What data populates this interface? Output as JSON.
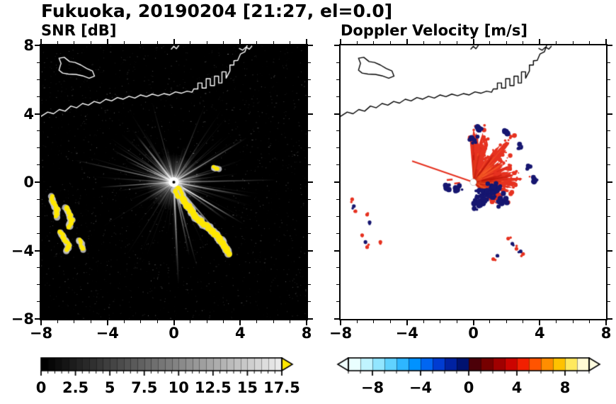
{
  "title": "Fukuoka, 20190204 [21:27, el=0.0]",
  "panels": {
    "snr": {
      "title": "SNR [dB]",
      "xlim": [
        -8,
        8
      ],
      "ylim": [
        -8,
        8
      ],
      "xtick_values": [
        -8,
        -4,
        0,
        4,
        8
      ],
      "xtick_labels": [
        "−8",
        "−4",
        "0",
        "4",
        "8"
      ],
      "ytick_values": [
        -8,
        -4,
        0,
        4,
        8
      ],
      "ytick_labels": [
        "−8",
        "−4",
        "0",
        "4",
        "8"
      ],
      "minor_tick_step": 1
    },
    "doppler": {
      "title": "Doppler Velocity [m/s]",
      "xlim": [
        -8,
        8
      ],
      "ylim": [
        -8,
        8
      ],
      "xtick_values": [
        -8,
        -4,
        0,
        4,
        8
      ],
      "xtick_labels": [
        "−8",
        "−4",
        "0",
        "4",
        "8"
      ],
      "ytick_values": [
        -8,
        -4,
        0,
        4,
        8
      ],
      "ytick_labels": [],
      "minor_tick_step": 1
    }
  },
  "colorbars": {
    "snr": {
      "min": 0,
      "max": 17.5,
      "tick_label_values": [
        0,
        2.5,
        5,
        7.5,
        10,
        12.5,
        15,
        17.5
      ],
      "tick_labels": [
        "0",
        "2.5",
        "5",
        "7.5",
        "10",
        "12.5",
        "15",
        "17.5"
      ],
      "minor_tick_step": 0.5,
      "segments": 35,
      "start_color": "#000000",
      "end_color": "#ebebeb",
      "over_arrow_color": "#ffe800"
    },
    "doppler": {
      "min": -10,
      "max": 10,
      "tick_label_values": [
        -8,
        -4,
        0,
        4,
        8
      ],
      "tick_labels": [
        "−8",
        "−4",
        "0",
        "4",
        "8"
      ],
      "minor_tick_step": 1,
      "segment_colors": [
        "#eaffff",
        "#c0f4ff",
        "#92e6ff",
        "#60d2ff",
        "#2eb6ff",
        "#0092ff",
        "#0066f2",
        "#003cd2",
        "#0022a2",
        "#001270",
        "#4c0008",
        "#760000",
        "#a00000",
        "#cc0400",
        "#f22000",
        "#ff5400",
        "#ff8e00",
        "#ffc200",
        "#ffe95e",
        "#fffad4"
      ],
      "under_arrow_color": "#f0ffff",
      "over_arrow_color": "#fffce0"
    }
  },
  "chart_data": {
    "type": "heatmap",
    "subtype": "radar-ppi-pair",
    "figure_title": "Fukuoka, 20190204 [21:27, el=0.0]",
    "site": "Fukuoka",
    "date": "20190204",
    "time": "21:27",
    "elevation_deg": 0.0,
    "axes_range": [
      -8,
      8
    ],
    "radar_center": [
      0,
      0
    ],
    "coastline": [
      [
        [
          -8,
          3.85
        ],
        [
          -7.6,
          4.1
        ],
        [
          -7.25,
          4.0
        ],
        [
          -6.9,
          4.25
        ],
        [
          -6.55,
          4.15
        ],
        [
          -6.2,
          4.45
        ],
        [
          -5.85,
          4.35
        ],
        [
          -5.5,
          4.6
        ],
        [
          -5.15,
          4.5
        ],
        [
          -4.8,
          4.72
        ],
        [
          -4.45,
          4.62
        ],
        [
          -4.1,
          4.85
        ],
        [
          -3.75,
          4.75
        ],
        [
          -3.4,
          4.95
        ],
        [
          -3.05,
          4.85
        ],
        [
          -2.7,
          5.02
        ],
        [
          -2.35,
          4.92
        ],
        [
          -2.0,
          5.1
        ],
        [
          -1.65,
          5.0
        ],
        [
          -1.3,
          5.15
        ],
        [
          -0.95,
          5.05
        ],
        [
          -0.6,
          5.18
        ],
        [
          -0.25,
          5.1
        ],
        [
          0.1,
          5.28
        ],
        [
          0.45,
          5.2
        ],
        [
          0.8,
          5.32
        ],
        [
          1.1,
          5.26
        ],
        [
          1.2,
          5.45
        ],
        [
          1.45,
          5.45
        ],
        [
          1.45,
          5.8
        ],
        [
          1.7,
          5.8
        ],
        [
          1.7,
          5.5
        ],
        [
          1.95,
          5.5
        ],
        [
          1.95,
          6.05
        ],
        [
          2.2,
          6.05
        ],
        [
          2.2,
          5.65
        ],
        [
          2.45,
          5.65
        ],
        [
          2.45,
          6.2
        ],
        [
          2.7,
          6.2
        ],
        [
          2.7,
          5.8
        ],
        [
          2.9,
          5.8
        ],
        [
          2.9,
          6.45
        ],
        [
          3.15,
          6.45
        ],
        [
          3.15,
          6.08
        ],
        [
          3.38,
          6.5
        ],
        [
          3.38,
          6.85
        ],
        [
          3.62,
          6.85
        ],
        [
          3.62,
          7.1
        ],
        [
          3.85,
          7.12
        ],
        [
          4.02,
          7.5
        ],
        [
          4.28,
          7.62
        ],
        [
          4.42,
          8.0
        ]
      ],
      [
        [
          -6.92,
          6.55
        ],
        [
          -6.8,
          6.95
        ],
        [
          -6.92,
          7.25
        ],
        [
          -6.6,
          7.3
        ],
        [
          -6.28,
          7.05
        ],
        [
          -5.95,
          7.0
        ],
        [
          -5.6,
          6.85
        ],
        [
          -5.25,
          6.65
        ],
        [
          -4.9,
          6.5
        ],
        [
          -4.78,
          6.2
        ],
        [
          -5.1,
          6.08
        ],
        [
          -5.5,
          6.22
        ],
        [
          -5.9,
          6.3
        ],
        [
          -6.35,
          6.32
        ],
        [
          -6.7,
          6.38
        ],
        [
          -6.92,
          6.55
        ]
      ],
      [
        [
          -0.15,
          7.78
        ],
        [
          0.0,
          7.95
        ],
        [
          0.15,
          7.8
        ],
        [
          0.3,
          8.0
        ]
      ],
      [
        [
          3.95,
          7.82
        ],
        [
          4.15,
          7.72
        ],
        [
          4.35,
          7.9
        ],
        [
          4.55,
          7.78
        ],
        [
          4.7,
          7.95
        ]
      ]
    ],
    "snr": {
      "background": "#000000",
      "value_range_db": [
        0,
        17.5
      ],
      "speckle": {
        "seed": 7,
        "count": 2300
      },
      "rays": {
        "seed": 42,
        "count": 240,
        "bright_count": 16,
        "max_length": 6.5
      },
      "glow_radius": 1.7,
      "core": {
        "color": "#ffffff",
        "radius": 0.3,
        "center_dot_color": "#000000",
        "center_dot_radius": 0.09
      },
      "echo_color": "#ffe800",
      "echo_halo_color": "#c8c8c8",
      "echo_chains": [
        {
          "name": "west-arc-1",
          "radius_px": 3,
          "points": [
            [
              -7.35,
              -0.85
            ],
            [
              -7.25,
              -1.25
            ],
            [
              -7.05,
              -1.6
            ],
            [
              -7.1,
              -2.0
            ]
          ]
        },
        {
          "name": "west-arc-2",
          "radius_px": 3,
          "points": [
            [
              -6.5,
              -1.45
            ],
            [
              -6.3,
              -1.85
            ],
            [
              -6.15,
              -2.25
            ],
            [
              -6.3,
              -2.6
            ]
          ]
        },
        {
          "name": "west-arc-3",
          "radius_px": 3,
          "points": [
            [
              -6.85,
              -2.95
            ],
            [
              -6.6,
              -3.3
            ],
            [
              -6.35,
              -3.65
            ],
            [
              -6.45,
              -4.0
            ]
          ]
        },
        {
          "name": "west-arc-4",
          "radius_px": 2.5,
          "points": [
            [
              -5.7,
              -3.35
            ],
            [
              -5.55,
              -3.65
            ],
            [
              -5.45,
              -3.95
            ]
          ]
        },
        {
          "name": "southeast-chain",
          "radius_px": 4,
          "points": [
            [
              0.25,
              -0.3
            ],
            [
              0.4,
              -0.65
            ],
            [
              0.55,
              -1.0
            ],
            [
              0.75,
              -1.3
            ],
            [
              1.0,
              -1.55
            ],
            [
              1.15,
              -1.85
            ],
            [
              1.4,
              -2.1
            ],
            [
              1.65,
              -2.35
            ],
            [
              1.95,
              -2.55
            ],
            [
              2.25,
              -2.8
            ],
            [
              2.5,
              -3.05
            ],
            [
              2.75,
              -3.3
            ],
            [
              2.95,
              -3.55
            ],
            [
              3.15,
              -3.85
            ],
            [
              3.3,
              -4.15
            ]
          ]
        },
        {
          "name": "center-spur",
          "radius_px": 3,
          "points": [
            [
              0.05,
              -0.5
            ],
            [
              0.2,
              -0.8
            ]
          ]
        },
        {
          "name": "northeast-speck",
          "radius_px": 2.5,
          "points": [
            [
              2.45,
              0.85
            ],
            [
              2.68,
              0.8
            ]
          ]
        }
      ]
    },
    "doppler": {
      "background": "#ffffff",
      "value_range_ms": [
        -10,
        10
      ],
      "positive_color": "#e63220",
      "positive_dark_color": "#b81408",
      "positive_light_color": "#ff6a2a",
      "negative_color": "#161670",
      "fan": {
        "seed": 11,
        "angle_min_deg": -48,
        "angle_max_deg": 96,
        "radius_min": 0.9,
        "radius_max": 4.4,
        "envelope_peak_deg": 40
      },
      "beam_line": {
        "angle_deg": 161,
        "length": 3.9
      },
      "west_streaks": [
        [
          -1.6,
          0.12
        ],
        [
          -1.15,
          -0.08
        ]
      ],
      "blue_patches": [
        {
          "center": [
            0.75,
            -0.75
          ],
          "count": 42,
          "spread": 0.5
        },
        {
          "center": [
            1.3,
            -0.45
          ],
          "count": 24,
          "spread": 0.35
        },
        {
          "center": [
            0.35,
            -1.3
          ],
          "count": 18,
          "spread": 0.3
        },
        {
          "center": [
            1.7,
            -1.15
          ],
          "count": 14,
          "spread": 0.28
        },
        {
          "center": [
            -0.85,
            -0.4
          ],
          "count": 10,
          "spread": 0.22
        },
        {
          "center": [
            -1.55,
            -0.3
          ],
          "count": 6,
          "spread": 0.15
        },
        {
          "center": [
            0.0,
            2.45
          ],
          "count": 8,
          "spread": 0.2
        },
        {
          "center": [
            0.35,
            3.1
          ],
          "count": 6,
          "spread": 0.18
        },
        {
          "center": [
            1.95,
            3.0
          ],
          "count": 7,
          "spread": 0.2
        },
        {
          "center": [
            2.75,
            2.1
          ],
          "count": 6,
          "spread": 0.18
        },
        {
          "center": [
            3.3,
            0.9
          ],
          "count": 6,
          "spread": 0.18
        },
        {
          "center": [
            3.7,
            0.15
          ],
          "count": 5,
          "spread": 0.15
        }
      ],
      "outlier_positive_specks": [
        [
          -7.3,
          -1.0
        ],
        [
          -7.1,
          -1.7
        ],
        [
          -6.4,
          -1.9
        ],
        [
          -6.7,
          -3.1
        ],
        [
          -6.4,
          -3.8
        ],
        [
          -5.6,
          -3.5
        ],
        [
          2.1,
          -3.3
        ],
        [
          2.6,
          -3.9
        ],
        [
          3.0,
          -4.2
        ],
        [
          1.2,
          -4.5
        ]
      ],
      "outlier_negative_specks": [
        [
          -7.2,
          -1.4
        ],
        [
          -6.25,
          -2.35
        ],
        [
          -6.5,
          -3.5
        ],
        [
          2.35,
          -3.6
        ],
        [
          2.85,
          -4.05
        ],
        [
          1.45,
          -4.3
        ]
      ],
      "core": {
        "color": "#ffffff",
        "radius": 0.2
      }
    }
  }
}
